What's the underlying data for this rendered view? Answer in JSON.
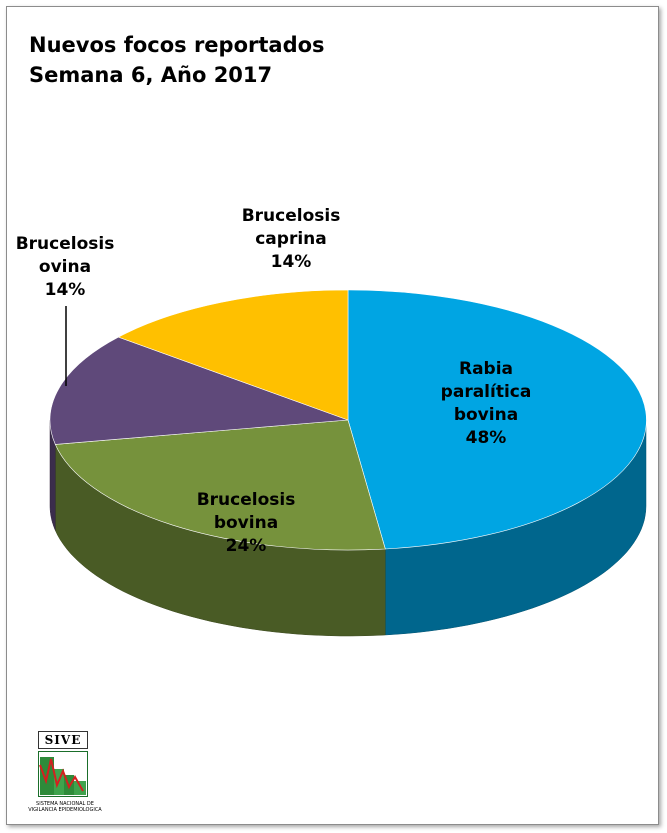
{
  "title_line1": "Nuevos focos reportados",
  "title_line2": "Semana 6, Año 2017",
  "chart_data": {
    "type": "pie",
    "title": "Nuevos focos reportados Semana 6, Año 2017",
    "slices": [
      {
        "label": [
          "Rabia",
          "paralítica",
          "bovina"
        ],
        "value": 48,
        "value_label": "48%",
        "color": "#00A5E3"
      },
      {
        "label": [
          "Brucelosis",
          "bovina"
        ],
        "value": 24,
        "value_label": "24%",
        "color": "#76923C"
      },
      {
        "label": [
          "Brucelosis",
          "ovina"
        ],
        "value": 14,
        "value_label": "14%",
        "color": "#5F497A"
      },
      {
        "label": [
          "Brucelosis",
          "caprina"
        ],
        "value": 14,
        "value_label": "14%",
        "color": "#FFC000"
      }
    ]
  },
  "logo": {
    "word": "SIVE",
    "caption_line1": "SISTEMA NACIONAL DE",
    "caption_line2": "VIGILANCIA EPIDEMIOLOGICA"
  }
}
